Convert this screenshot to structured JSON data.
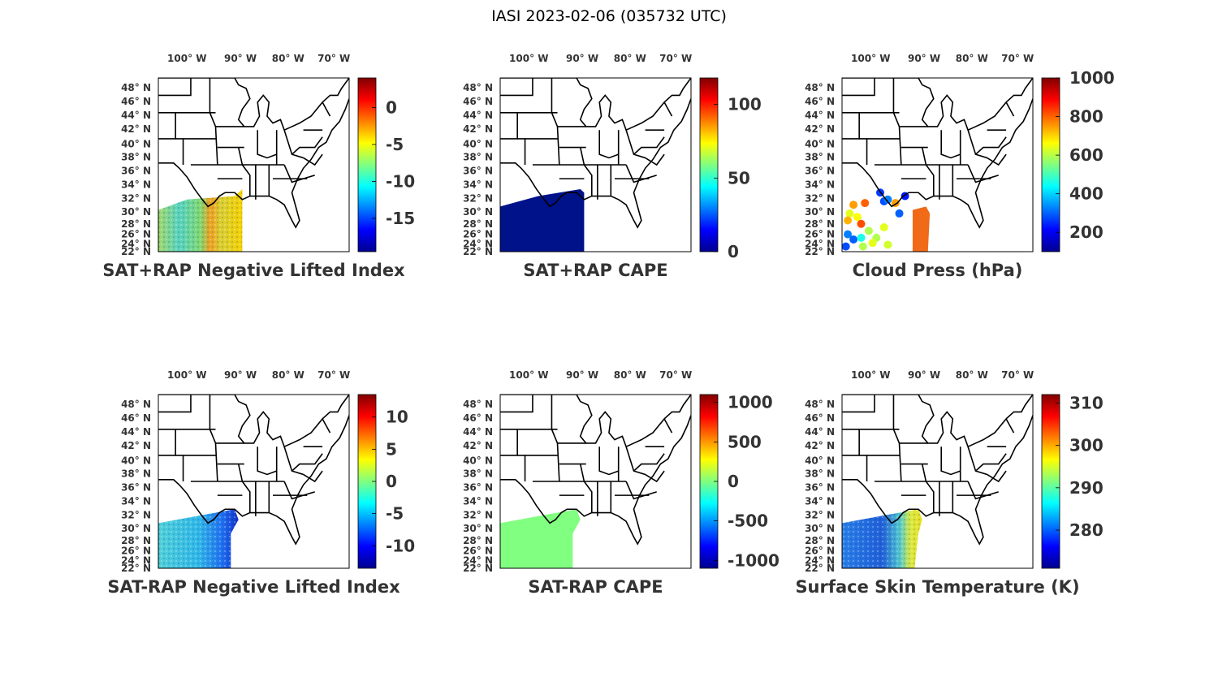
{
  "figure": {
    "title": "IASI 2023-02-06 (035732 UTC)"
  },
  "map_axes": {
    "lon_labels": [
      "100",
      "90",
      "80",
      "70"
    ],
    "lon_hemisphere": "W",
    "lat_labels": [
      "48",
      "46",
      "44",
      "42",
      "40",
      "38",
      "36",
      "34",
      "32",
      "30",
      "28",
      "26",
      "24",
      "22"
    ],
    "lat_hemisphere": "N",
    "degree_symbol": "°"
  },
  "colormap": "jet",
  "panels": [
    {
      "id": "sat-rap-neg-li",
      "label": "SAT+RAP Negative Lifted Index",
      "colorbar": {
        "ticks": [
          "0",
          "-5",
          "-10",
          "-15"
        ],
        "tick_values": [
          0,
          -5,
          -10,
          -15
        ],
        "range": [
          -19.5,
          4.0
        ]
      },
      "fill": "swath-li"
    },
    {
      "id": "sat-rap-cape",
      "label": "SAT+RAP CAPE",
      "colorbar": {
        "ticks": [
          "100",
          "50",
          "0"
        ],
        "tick_values": [
          100,
          50,
          0
        ],
        "range": [
          0,
          118
        ]
      },
      "fill": "swath-cape"
    },
    {
      "id": "cloud-press",
      "label": "Cloud Press (hPa)",
      "colorbar": {
        "ticks": [
          "1000",
          "800",
          "600",
          "400",
          "200"
        ],
        "tick_values": [
          1000,
          800,
          600,
          400,
          200
        ],
        "range": [
          100,
          1000
        ]
      },
      "fill": "cloud-dots"
    },
    {
      "id": "sat-minus-rap-neg-li",
      "label": "SAT-RAP Negative Lifted Index",
      "colorbar": {
        "ticks": [
          "10",
          "5",
          "0",
          "-5",
          "-10"
        ],
        "tick_values": [
          10,
          5,
          0,
          -5,
          -10
        ],
        "range": [
          -13.5,
          13.5
        ]
      },
      "fill": "swath-li-diff"
    },
    {
      "id": "sat-minus-rap-cape",
      "label": "SAT-RAP CAPE",
      "colorbar": {
        "ticks": [
          "1000",
          "500",
          "0",
          "-500",
          "-1000"
        ],
        "tick_values": [
          1000,
          500,
          0,
          -500,
          -1000
        ],
        "range": [
          -1100,
          1100
        ]
      },
      "fill": "swath-cape-diff"
    },
    {
      "id": "skin-temp",
      "label": "Surface Skin Temperature (K)",
      "colorbar": {
        "ticks": [
          "310",
          "300",
          "290",
          "280"
        ],
        "tick_values": [
          310,
          300,
          290,
          280
        ],
        "range": [
          271,
          312
        ]
      },
      "fill": "swath-tskin"
    }
  ]
}
